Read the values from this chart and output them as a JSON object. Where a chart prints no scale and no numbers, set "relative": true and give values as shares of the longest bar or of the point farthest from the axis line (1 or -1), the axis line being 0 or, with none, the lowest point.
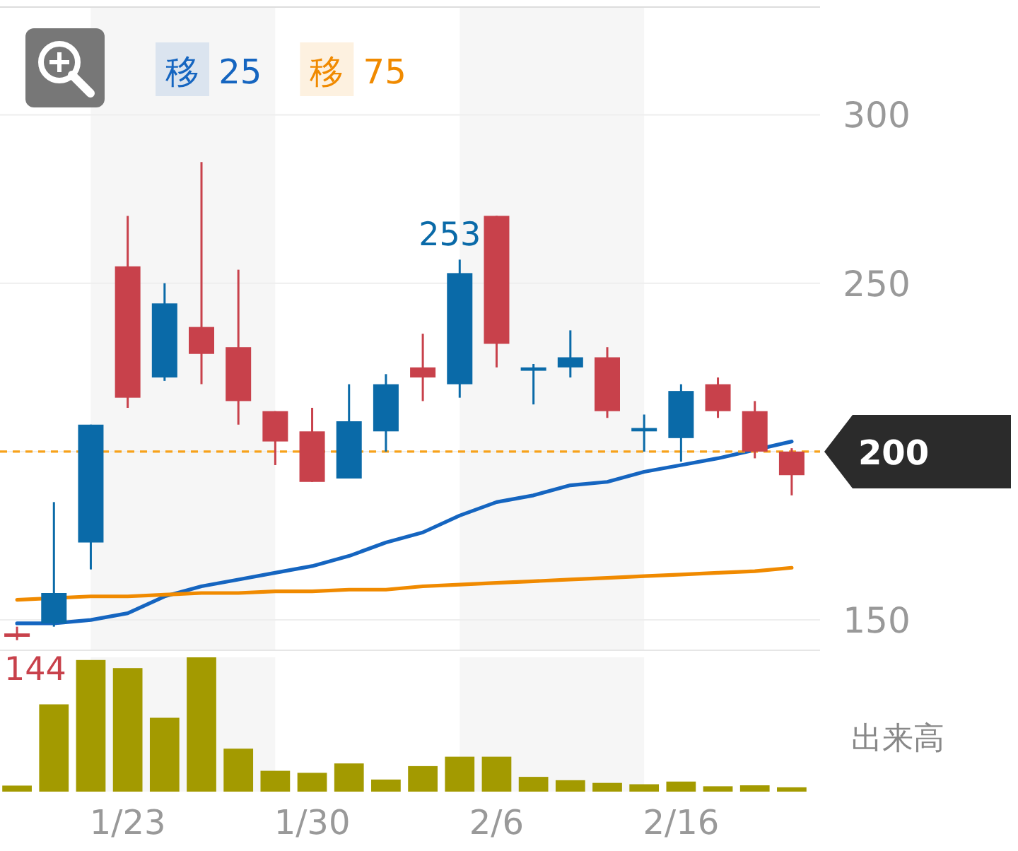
{
  "chart_data": [
    {
      "type": "candlestick",
      "categories": [
        null,
        null,
        null,
        null,
        null,
        null,
        null,
        null,
        null,
        null,
        null,
        null,
        null,
        null,
        null,
        null,
        null,
        null,
        null,
        null,
        null,
        null
      ],
      "ohlc": [
        [
          146,
          148,
          144,
          145
        ],
        [
          149,
          185,
          148,
          158
        ],
        [
          173,
          208,
          165,
          208
        ],
        [
          255,
          270,
          213,
          216
        ],
        [
          222,
          250,
          221,
          244
        ],
        [
          237,
          286,
          220,
          229
        ],
        [
          231,
          254,
          208,
          215
        ],
        [
          212,
          212,
          196,
          203
        ],
        [
          206,
          213,
          191,
          191
        ],
        [
          192,
          220,
          192,
          209
        ],
        [
          206,
          223,
          200,
          220
        ],
        [
          225,
          235,
          215,
          222
        ],
        [
          220,
          257,
          216,
          253
        ],
        [
          270,
          270,
          225,
          232
        ],
        [
          224,
          226,
          214,
          225
        ],
        [
          225,
          236,
          222,
          228
        ],
        [
          228,
          231,
          210,
          212
        ],
        [
          206,
          211,
          200,
          207
        ],
        [
          204,
          220,
          197,
          218
        ],
        [
          220,
          222,
          210,
          212
        ],
        [
          212,
          215,
          198,
          200
        ],
        [
          200,
          201,
          187,
          193
        ]
      ],
      "colors": [
        "#c8414b",
        "#0a6aa8",
        "#0a6aa8",
        "#c8414b",
        "#0a6aa8",
        "#c8414b",
        "#c8414b",
        "#c8414b",
        "#c8414b",
        "#0a6aa8",
        "#0a6aa8",
        "#c8414b",
        "#0a6aa8",
        "#c8414b",
        "#0a6aa8",
        "#0a6aa8",
        "#c8414b",
        "#0a6aa8",
        "#0a6aa8",
        "#c8414b",
        "#c8414b",
        "#c8414b"
      ],
      "value_labels": [
        "144",
        null,
        null,
        null,
        null,
        null,
        null,
        null,
        null,
        null,
        null,
        null,
        "253",
        null,
        null,
        null,
        null,
        null,
        null,
        null,
        null,
        null
      ],
      "series": [
        {
          "name": "移 25",
          "type": "line",
          "color": "#1565c0",
          "values": [
            149,
            149,
            150,
            152,
            157,
            160,
            162,
            164,
            166,
            169,
            173,
            176,
            181,
            185,
            187,
            190,
            191,
            194,
            196,
            198,
            null,
            203
          ]
        },
        {
          "name": "移 75",
          "type": "line",
          "color": "#f08a00",
          "values": [
            156,
            null,
            157,
            157,
            157.5,
            158,
            158,
            158.5,
            158.5,
            159,
            159,
            160,
            160.5,
            161,
            161.5,
            162,
            162.5,
            163,
            163.5,
            164,
            164.5,
            165.5
          ]
        }
      ],
      "ylim": [
        141,
        332
      ],
      "yticks": [
        150,
        {
          "value": 200,
          "label": null
        },
        250,
        300
      ],
      "grid": "y",
      "tick_labels": "y",
      "legend": "top",
      "ref_lines": [
        {
          "axis": "y",
          "value": 200,
          "label": "200",
          "color": "#f7a21b",
          "line_style": "dashed"
        }
      ]
    },
    {
      "type": "bar",
      "relative": true,
      "ylabel": "出来高",
      "color": "#a39a00",
      "categories": [
        null,
        null,
        null,
        "1/23",
        null,
        null,
        null,
        null,
        "1/30",
        null,
        null,
        null,
        null,
        "2/6",
        null,
        null,
        null,
        null,
        "2/16",
        null,
        null,
        null
      ],
      "values": [
        0.045,
        0.65,
        0.98,
        0.92,
        0.55,
        1,
        0.32,
        0.155,
        0.14,
        0.21,
        0.09,
        0.19,
        0.26,
        0.26,
        0.11,
        0.085,
        0.065,
        0.055,
        0.075,
        0.04,
        0.047,
        0.032
      ],
      "tick_labels": "x"
    }
  ]
}
